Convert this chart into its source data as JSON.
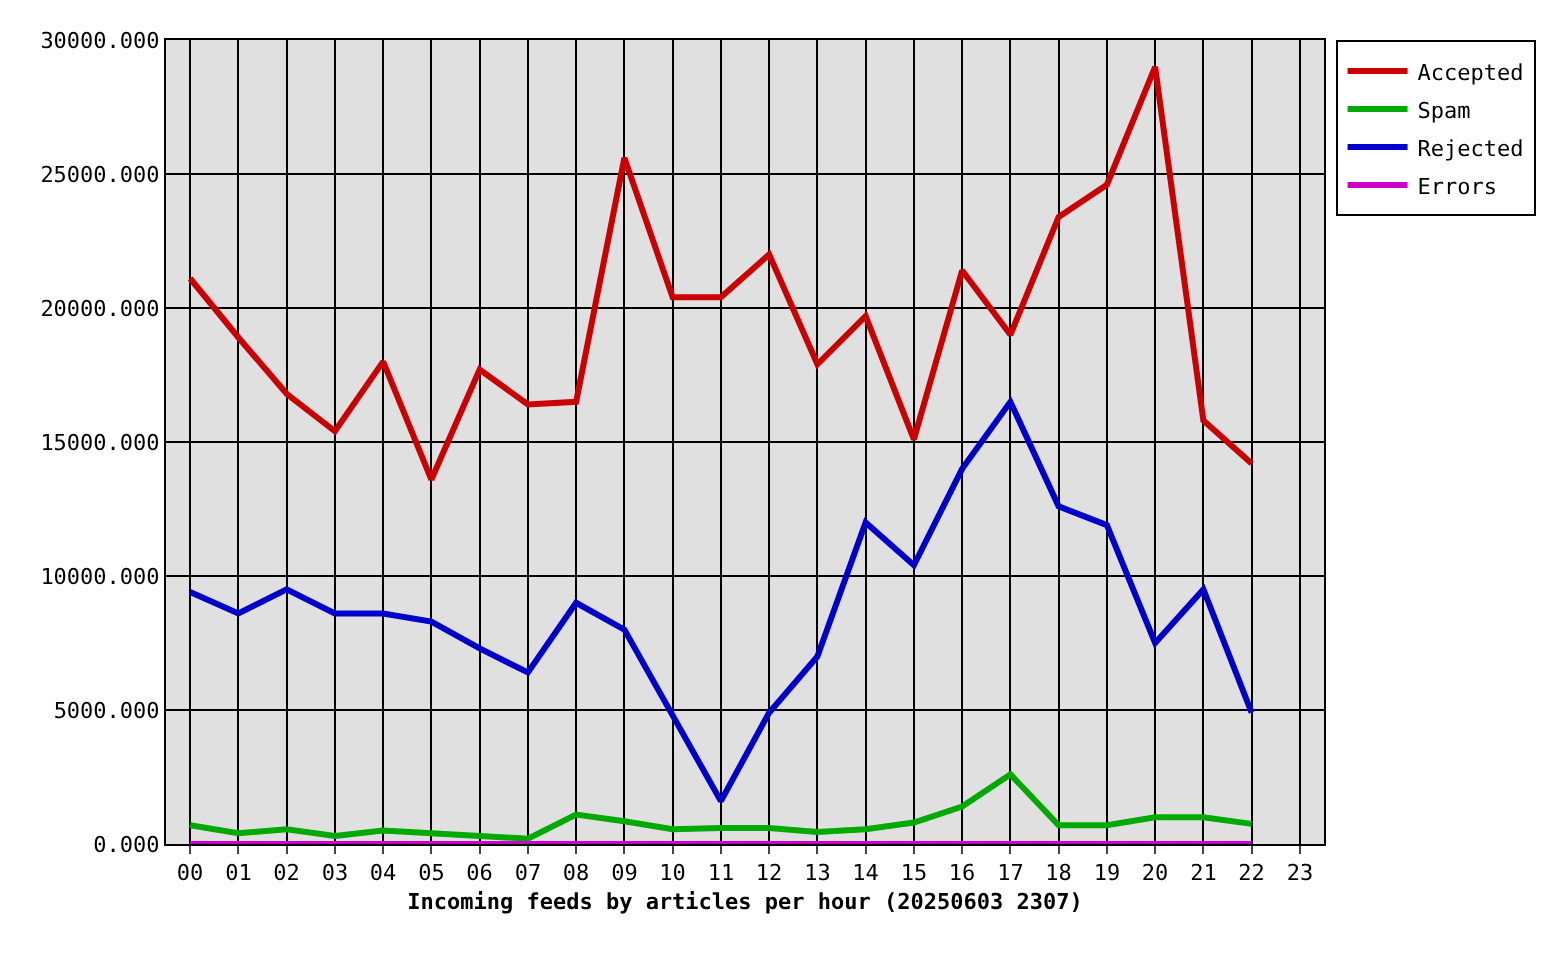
{
  "chart_data": {
    "type": "line",
    "xlabel": "Incoming feeds by articles per hour (20250603 2307)",
    "categories": [
      "00",
      "01",
      "02",
      "03",
      "04",
      "05",
      "06",
      "07",
      "08",
      "09",
      "10",
      "11",
      "12",
      "13",
      "14",
      "15",
      "16",
      "17",
      "18",
      "19",
      "20",
      "21",
      "22",
      "23"
    ],
    "series": [
      {
        "name": "Accepted",
        "color": "#cc0000",
        "values": [
          21100,
          18900,
          16800,
          15400,
          18000,
          13600,
          17700,
          16400,
          16500,
          25600,
          20400,
          20400,
          22000,
          17900,
          19700,
          15100,
          21400,
          19000,
          23400,
          24600,
          29000,
          15800,
          14200,
          null
        ]
      },
      {
        "name": "Spam",
        "color": "#00aa00",
        "values": [
          700,
          400,
          550,
          300,
          500,
          400,
          300,
          200,
          1100,
          850,
          550,
          600,
          600,
          450,
          550,
          800,
          1400,
          2600,
          700,
          700,
          1000,
          1000,
          750,
          null
        ]
      },
      {
        "name": "Rejected",
        "color": "#0000cc",
        "values": [
          9400,
          8600,
          9500,
          8600,
          8600,
          8300,
          7300,
          6400,
          9000,
          8000,
          4800,
          1600,
          4900,
          7000,
          12000,
          10400,
          14000,
          16500,
          12600,
          11900,
          7500,
          9500,
          4900,
          null
        ]
      },
      {
        "name": "Errors",
        "color": "#cc00cc",
        "values": [
          0,
          0,
          0,
          0,
          0,
          0,
          0,
          0,
          0,
          0,
          0,
          0,
          0,
          0,
          0,
          0,
          0,
          0,
          0,
          0,
          0,
          0,
          0,
          null
        ]
      }
    ],
    "ylim": [
      0,
      30000
    ],
    "yticks": [
      {
        "value": 0,
        "label": "0.000"
      },
      {
        "value": 5000,
        "label": "5000.000"
      },
      {
        "value": 10000,
        "label": "10000.000"
      },
      {
        "value": 15000,
        "label": "15000.000"
      },
      {
        "value": 20000,
        "label": "20000.000"
      },
      {
        "value": 25000,
        "label": "25000.000"
      },
      {
        "value": 30000,
        "label": "30000.000"
      }
    ],
    "grid": true,
    "legend": "top right",
    "marker": "none",
    "line_style": "solid"
  }
}
